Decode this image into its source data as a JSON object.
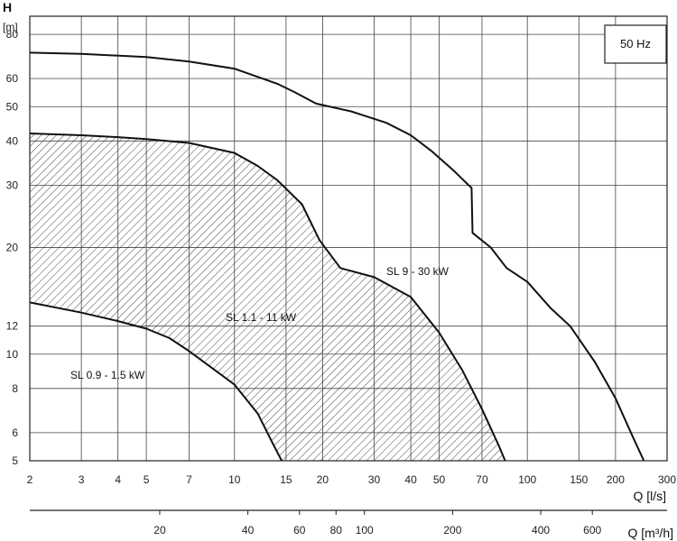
{
  "chart_data": {
    "type": "line",
    "frequency_label": "50 Hz",
    "y_axis": {
      "title": "H",
      "unit": "[m]",
      "scale": "log",
      "range": [
        5,
        90
      ],
      "ticks": [
        5,
        6,
        8,
        10,
        12,
        20,
        30,
        40,
        50,
        60,
        80
      ]
    },
    "x_axis_primary": {
      "title": "Q [l/s]",
      "scale": "log",
      "range": [
        2,
        300
      ],
      "ticks": [
        2,
        3,
        4,
        5,
        7,
        10,
        15,
        20,
        30,
        40,
        50,
        70,
        100,
        150,
        200,
        300
      ]
    },
    "x_axis_secondary": {
      "title": "Q [m³/h]",
      "scale": "log",
      "ticks": [
        20,
        40,
        60,
        80,
        100,
        200,
        400,
        600
      ]
    },
    "grid": true,
    "series": [
      {
        "name": "SL 0.9 - 1.5 kW",
        "points": [
          [
            2,
            14
          ],
          [
            3,
            13.1
          ],
          [
            4,
            12.4
          ],
          [
            5,
            11.8
          ],
          [
            6,
            11.1
          ],
          [
            7,
            10.2
          ],
          [
            8,
            9.4
          ],
          [
            10,
            8.2
          ],
          [
            12,
            6.8
          ],
          [
            13.5,
            5.6
          ],
          [
            14.5,
            5
          ]
        ]
      },
      {
        "name": "SL 1.1 - 11 kW",
        "shaded": true,
        "points": [
          [
            2,
            42
          ],
          [
            3,
            41.5
          ],
          [
            4,
            41
          ],
          [
            5,
            40.5
          ],
          [
            7,
            39.5
          ],
          [
            10,
            37
          ],
          [
            12,
            34
          ],
          [
            14,
            31
          ],
          [
            17,
            26.5
          ],
          [
            19.5,
            21
          ],
          [
            23,
            17.5
          ],
          [
            30,
            16.5
          ],
          [
            40,
            14.5
          ],
          [
            50,
            11.5
          ],
          [
            60,
            9
          ],
          [
            70,
            7
          ],
          [
            80,
            5.5
          ],
          [
            84,
            5
          ]
        ]
      },
      {
        "name": "SL 9 - 30 kW",
        "points": [
          [
            2,
            71
          ],
          [
            3,
            70.5
          ],
          [
            5,
            69
          ],
          [
            7,
            67
          ],
          [
            10,
            64
          ],
          [
            14,
            58
          ],
          [
            16,
            55
          ],
          [
            19,
            51
          ],
          [
            25,
            48.5
          ],
          [
            33,
            45
          ],
          [
            40,
            41.5
          ],
          [
            47,
            37.5
          ],
          [
            56,
            33
          ],
          [
            63,
            30
          ],
          [
            64.5,
            29.5
          ],
          [
            65,
            22
          ],
          [
            75,
            20
          ],
          [
            85,
            17.5
          ],
          [
            100,
            16
          ],
          [
            120,
            13.5
          ],
          [
            140,
            12
          ],
          [
            145,
            11.5
          ],
          [
            170,
            9.5
          ],
          [
            200,
            7.5
          ],
          [
            230,
            5.8
          ],
          [
            250,
            5
          ]
        ]
      }
    ]
  }
}
